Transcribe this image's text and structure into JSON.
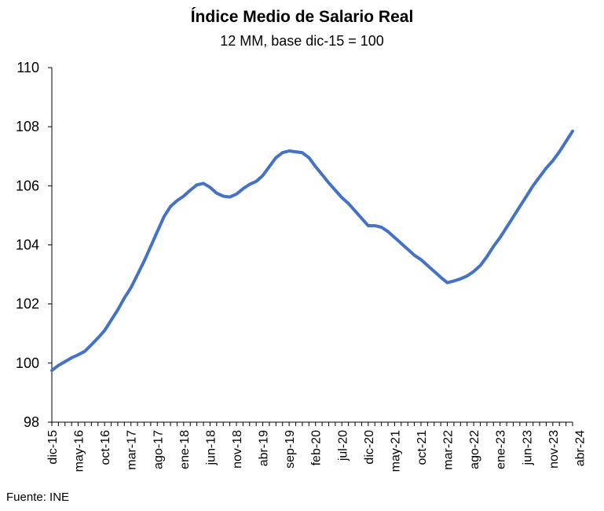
{
  "chart_data": {
    "type": "line",
    "title": "Índice Medio de Salario Real",
    "subtitle": "12 MM, base dic-15 = 100",
    "xlabel": "",
    "ylabel": "",
    "ylim": [
      98,
      110
    ],
    "yticks": [
      98,
      100,
      102,
      104,
      106,
      108,
      110
    ],
    "x_tick_labels": [
      "dic-15",
      "may-16",
      "oct-16",
      "mar-17",
      "ago-17",
      "ene-18",
      "jun-18",
      "nov-18",
      "abr-19",
      "sep-19",
      "feb-20",
      "jul-20",
      "dic-20",
      "may-21",
      "oct-21",
      "mar-22",
      "ago-22",
      "ene-23",
      "jun-23",
      "nov-23",
      "abr-24"
    ],
    "grid": false,
    "legend": "none",
    "line_color": "#4472C4",
    "series": [
      {
        "values": [
          99.75,
          99.92,
          100.05,
          100.18,
          100.28,
          100.4,
          100.62,
          100.85,
          101.1,
          101.45,
          101.8,
          102.2,
          102.55,
          103.0,
          103.45,
          103.95,
          104.45,
          104.95,
          105.3,
          105.5,
          105.65,
          105.85,
          106.03,
          106.08,
          105.95,
          105.75,
          105.65,
          105.62,
          105.72,
          105.9,
          106.05,
          106.15,
          106.35,
          106.65,
          106.95,
          107.12,
          107.18,
          107.15,
          107.12,
          106.95,
          106.65,
          106.38,
          106.1,
          105.85,
          105.6,
          105.4,
          105.15,
          104.9,
          104.65,
          104.65,
          104.6,
          104.45,
          104.25,
          104.05,
          103.85,
          103.65,
          103.5,
          103.3,
          103.1,
          102.9,
          102.72,
          102.78,
          102.85,
          102.95,
          103.1,
          103.3,
          103.6,
          103.95,
          104.25,
          104.6,
          104.95,
          105.3,
          105.65,
          106.0,
          106.3,
          106.6,
          106.85,
          107.15,
          107.5,
          107.85
        ]
      }
    ]
  },
  "source_note": "Fuente: INE"
}
